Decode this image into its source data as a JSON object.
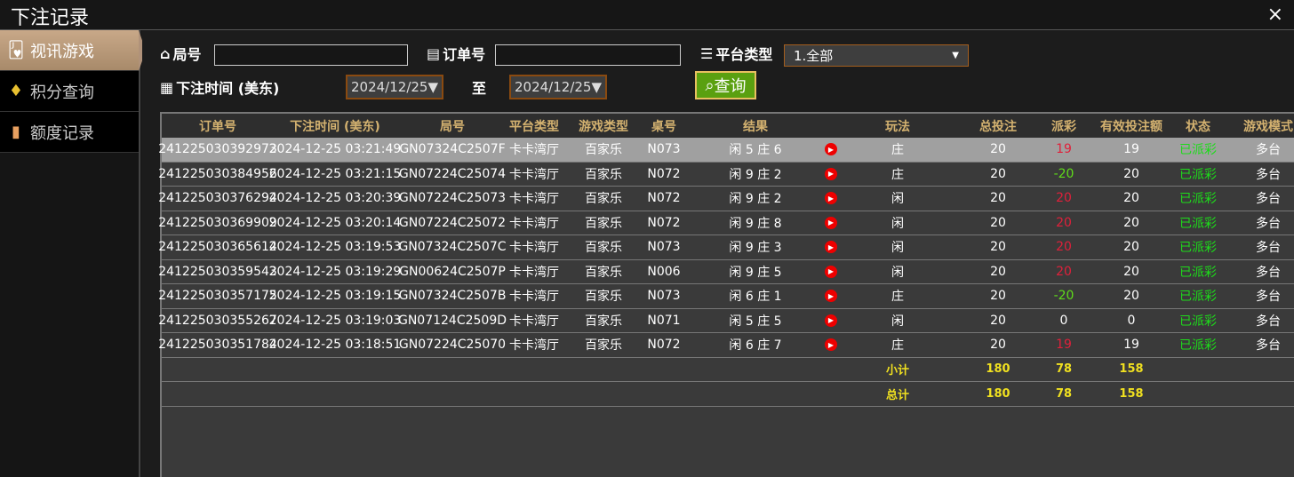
{
  "title": "下注记录",
  "close": "×",
  "sidebar": {
    "items": [
      {
        "label": "视讯游戏",
        "icon": "cards-icon"
      },
      {
        "label": "积分查询",
        "icon": "diamond-icon"
      },
      {
        "label": "额度记录",
        "icon": "document-icon"
      }
    ]
  },
  "filters": {
    "round_label": "局号",
    "round_value": "",
    "order_label": "订单号",
    "order_value": "",
    "platform_label": "平台类型",
    "platform_value": "1.全部",
    "time_label": "下注时间 (美东)",
    "date_from": "2024/12/25▼",
    "to_label": "至",
    "date_to": "2024/12/25▼",
    "query_label": "查询"
  },
  "table": {
    "headers": [
      "订单号",
      "下注时间 (美东)",
      "局号",
      "平台类型",
      "游戏类型",
      "桌号",
      "结果",
      "",
      "玩法",
      "总投注",
      "派彩",
      "有效投注额",
      "状态",
      "游戏模式"
    ],
    "rows": [
      [
        "241225030392973",
        "2024-12-25 03:21:49",
        "GN07324C2507F",
        "卡卡湾厅",
        "百家乐",
        "N073",
        "闲 5 庄 6",
        "",
        "庄",
        "20",
        "19",
        "19",
        "已派彩",
        "多台"
      ],
      [
        "241225030384956",
        "2024-12-25 03:21:15",
        "GN07224C25074",
        "卡卡湾厅",
        "百家乐",
        "N072",
        "闲 9 庄 2",
        "",
        "庄",
        "20",
        "-20",
        "20",
        "已派彩",
        "多台"
      ],
      [
        "241225030376294",
        "2024-12-25 03:20:39",
        "GN07224C25073",
        "卡卡湾厅",
        "百家乐",
        "N072",
        "闲 9 庄 2",
        "",
        "闲",
        "20",
        "20",
        "20",
        "已派彩",
        "多台"
      ],
      [
        "241225030369909",
        "2024-12-25 03:20:14",
        "GN07224C25072",
        "卡卡湾厅",
        "百家乐",
        "N072",
        "闲 9 庄 8",
        "",
        "闲",
        "20",
        "20",
        "20",
        "已派彩",
        "多台"
      ],
      [
        "241225030365614",
        "2024-12-25 03:19:53",
        "GN07324C2507C",
        "卡卡湾厅",
        "百家乐",
        "N073",
        "闲 9 庄 3",
        "",
        "闲",
        "20",
        "20",
        "20",
        "已派彩",
        "多台"
      ],
      [
        "241225030359543",
        "2024-12-25 03:19:29",
        "GN00624C2507P",
        "卡卡湾厅",
        "百家乐",
        "N006",
        "闲 9 庄 5",
        "",
        "闲",
        "20",
        "20",
        "20",
        "已派彩",
        "多台"
      ],
      [
        "241225030357175",
        "2024-12-25 03:19:15",
        "GN07324C2507B",
        "卡卡湾厅",
        "百家乐",
        "N073",
        "闲 6 庄 1",
        "",
        "庄",
        "20",
        "-20",
        "20",
        "已派彩",
        "多台"
      ],
      [
        "241225030355267",
        "2024-12-25 03:19:03",
        "GN07124C2509D",
        "卡卡湾厅",
        "百家乐",
        "N071",
        "闲 5 庄 5",
        "",
        "闲",
        "20",
        "0",
        "0",
        "已派彩",
        "多台"
      ],
      [
        "241225030351784",
        "2024-12-25 03:18:51",
        "GN07224C25070",
        "卡卡湾厅",
        "百家乐",
        "N072",
        "闲 6 庄 7",
        "",
        "庄",
        "20",
        "19",
        "19",
        "已派彩",
        "多台"
      ]
    ],
    "payout_colors": [
      "red",
      "green",
      "red",
      "red",
      "red",
      "red",
      "green",
      "white",
      "red"
    ],
    "subtotal": {
      "label": "小计",
      "total_bet": "180",
      "payout": "78",
      "valid": "158"
    },
    "total": {
      "label": "总计",
      "total_bet": "180",
      "payout": "78",
      "valid": "158"
    }
  },
  "colors": {
    "accent": "#d4b270",
    "query_button": "#5aa010",
    "payout_loss": "#e0203a",
    "payout_win": "#5fdc1a",
    "status": "#1ddc1a"
  }
}
